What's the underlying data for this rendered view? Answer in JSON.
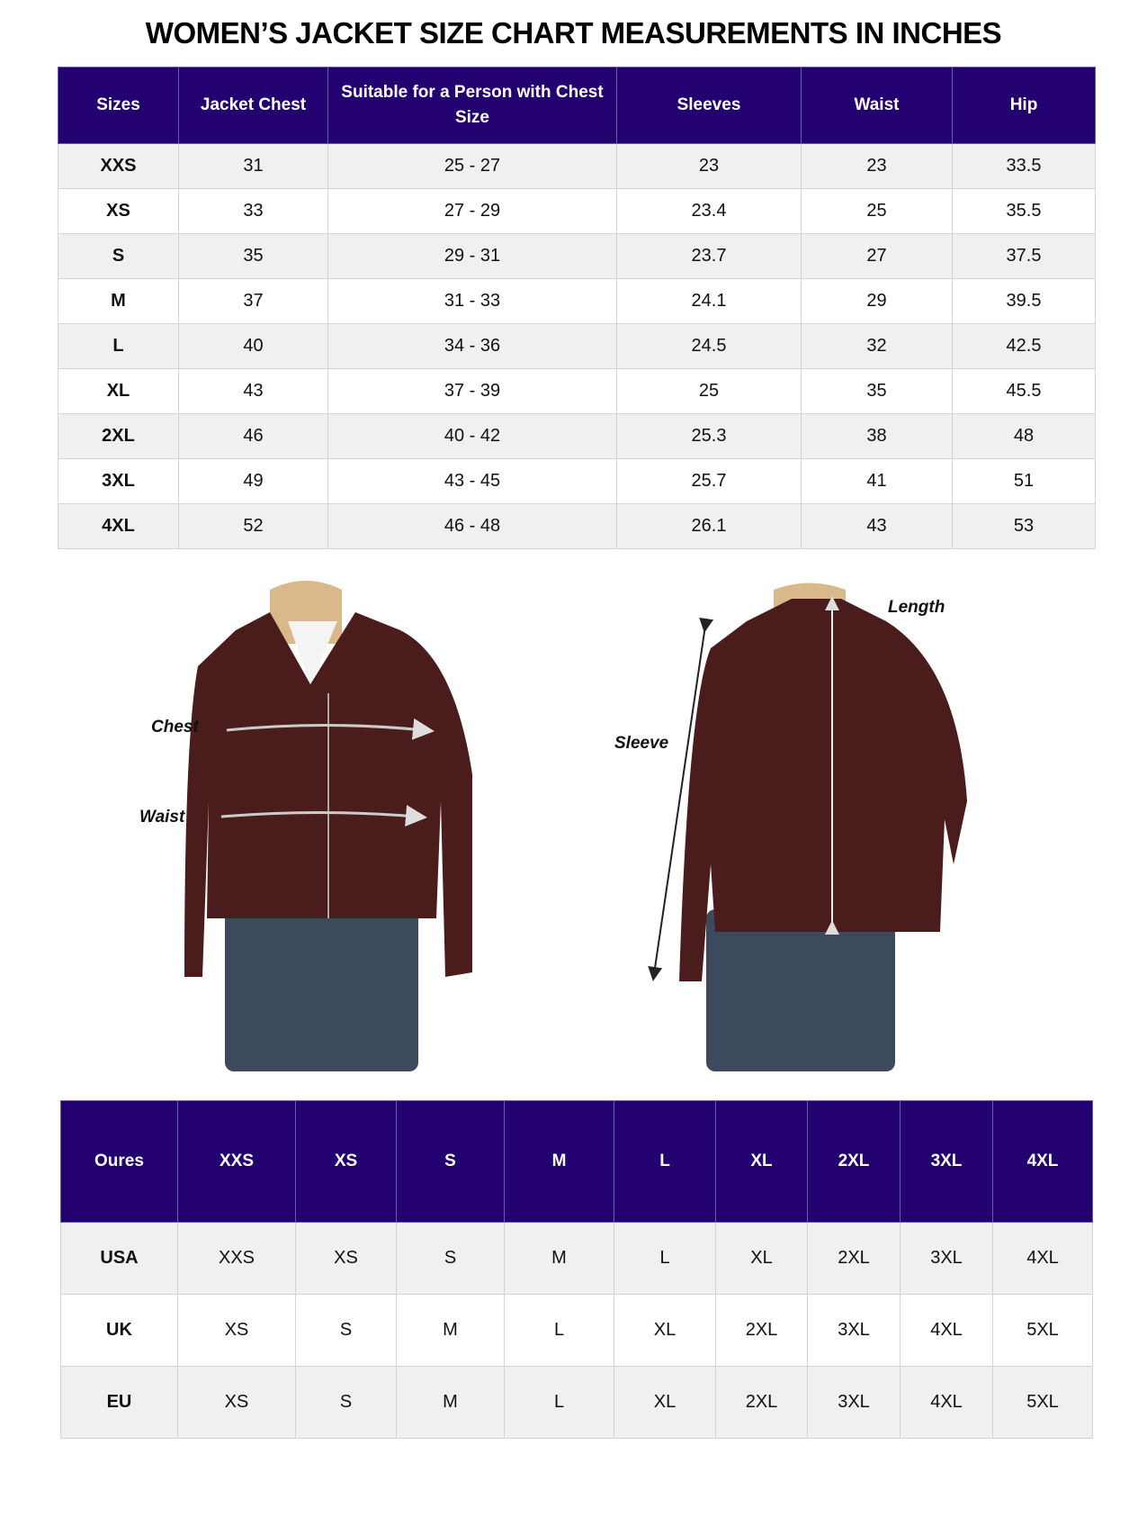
{
  "title": "WOMEN’S JACKET SIZE CHART MEASUREMENTS IN INCHES",
  "measurements_table": {
    "headers": [
      "Sizes",
      "Jacket Chest",
      "Suitable for a Person with Chest Size",
      "Sleeves",
      "Waist",
      "Hip"
    ],
    "rows": [
      [
        "XXS",
        "31",
        "25 - 27",
        "23",
        "23",
        "33.5"
      ],
      [
        "XS",
        "33",
        "27 - 29",
        "23.4",
        "25",
        "35.5"
      ],
      [
        "S",
        "35",
        "29 - 31",
        "23.7",
        "27",
        "37.5"
      ],
      [
        "M",
        "37",
        "31 - 33",
        "24.1",
        "29",
        "39.5"
      ],
      [
        "L",
        "40",
        "34 - 36",
        "24.5",
        "32",
        "42.5"
      ],
      [
        "XL",
        "43",
        "37 - 39",
        "25",
        "35",
        "45.5"
      ],
      [
        "2XL",
        "46",
        "40 - 42",
        "25.3",
        "38",
        "48"
      ],
      [
        "3XL",
        "49",
        "43 - 45",
        "25.7",
        "41",
        "51"
      ],
      [
        "4XL",
        "52",
        "46 - 48",
        "26.1",
        "43",
        "53"
      ]
    ]
  },
  "illustration": {
    "front_labels": {
      "chest": "Chest",
      "waist": "Waist"
    },
    "back_labels": {
      "sleeve": "Sleeve",
      "length": "Length"
    },
    "jacket_color": "#4a1c1c",
    "jeans_color": "#3d4a5e"
  },
  "conversion_table": {
    "headers": [
      "Oures",
      "XXS",
      "XS",
      "S",
      "M",
      "L",
      "XL",
      "2XL",
      "3XL",
      "4XL"
    ],
    "rows": [
      [
        "USA",
        "XXS",
        "XS",
        "S",
        "M",
        "L",
        "XL",
        "2XL",
        "3XL",
        "4XL"
      ],
      [
        "UK",
        "XS",
        "S",
        "M",
        "L",
        "XL",
        "2XL",
        "3XL",
        "4XL",
        "5XL"
      ],
      [
        "EU",
        "XS",
        "S",
        "M",
        "L",
        "XL",
        "2XL",
        "3XL",
        "4XL",
        "5XL"
      ]
    ]
  },
  "colors": {
    "header_bg": "#220070",
    "row_alt_bg": "#f0f0f0"
  }
}
